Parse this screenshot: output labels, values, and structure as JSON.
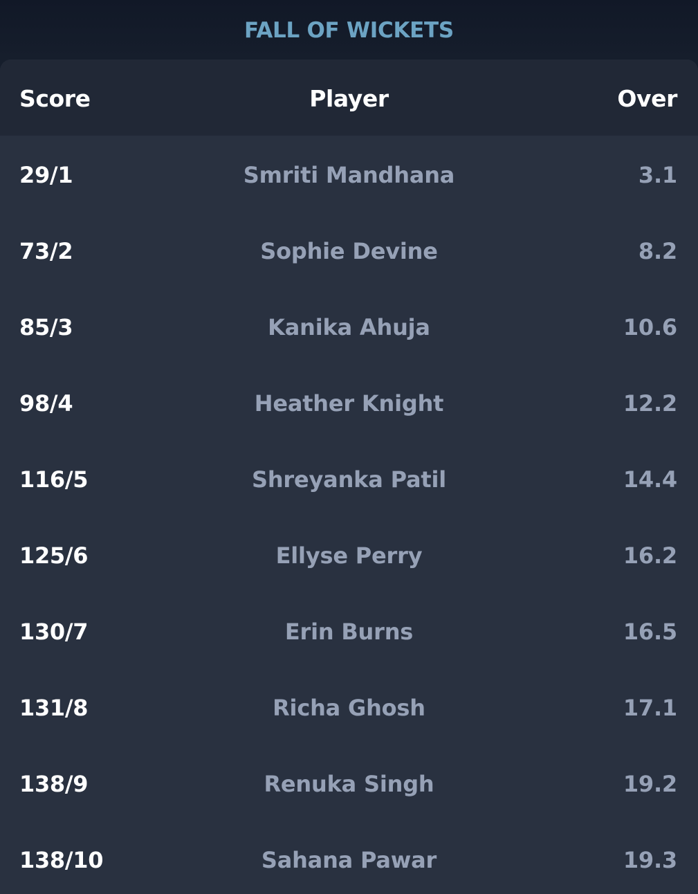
{
  "title": "FALL OF WICKETS",
  "columns": {
    "score": "Score",
    "player": "Player",
    "over": "Over"
  },
  "rows": [
    {
      "score": "29/1",
      "player": "Smriti Mandhana",
      "over": "3.1"
    },
    {
      "score": "73/2",
      "player": "Sophie Devine",
      "over": "8.2"
    },
    {
      "score": "85/3",
      "player": "Kanika Ahuja",
      "over": "10.6"
    },
    {
      "score": "98/4",
      "player": "Heather Knight",
      "over": "12.2"
    },
    {
      "score": "116/5",
      "player": "Shreyanka Patil",
      "over": "14.4"
    },
    {
      "score": "125/6",
      "player": "Ellyse Perry",
      "over": "16.2"
    },
    {
      "score": "130/7",
      "player": "Erin Burns",
      "over": "16.5"
    },
    {
      "score": "131/8",
      "player": "Richa Ghosh",
      "over": "17.1"
    },
    {
      "score": "138/9",
      "player": "Renuka Singh",
      "over": "19.2"
    },
    {
      "score": "138/10",
      "player": "Sahana Pawar",
      "over": "19.3"
    }
  ],
  "colors": {
    "title": "#6ca3c3",
    "header_bg": "#212836",
    "row_bg": "#293140",
    "primary_text": "#ffffff",
    "secondary_text": "#96a1b6"
  }
}
